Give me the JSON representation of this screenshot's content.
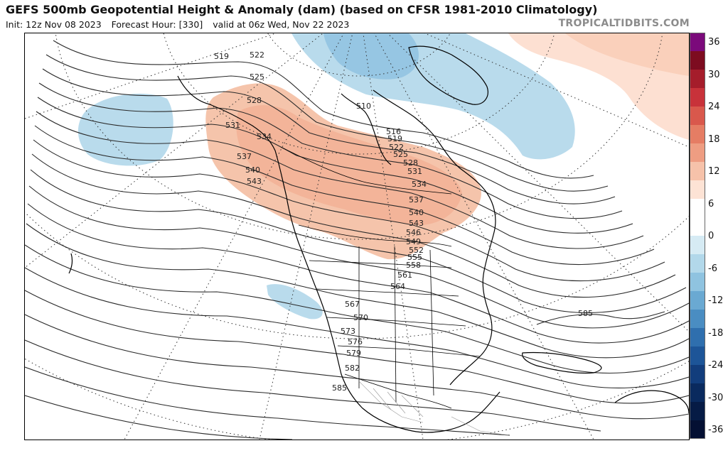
{
  "title": "GEFS 500mb Geopotential Height & Anomaly (dam) (based on CFSR 1981-2010 Climatology)",
  "subtitle": {
    "init": "Init: 12z Nov 08 2023",
    "forecast_hour": "Forecast Hour: [330]",
    "valid": "valid at 06z Wed, Nov 22 2023"
  },
  "brand": "TROPICALTIDBITS.COM",
  "colorbar": {
    "labels": [
      "36",
      "30",
      "24",
      "18",
      "12",
      "6",
      "0",
      "-6",
      "-12",
      "-18",
      "-24",
      "-30",
      "-36"
    ],
    "colors": [
      "#7b0a7b",
      "#7d0c20",
      "#a51d2b",
      "#c8323a",
      "#d9584c",
      "#e57d64",
      "#ee9d82",
      "#f6c2aa",
      "#fde3d5",
      "#ffffff",
      "#ffffff",
      "#d6ebf4",
      "#b2d8ea",
      "#8fc3e0",
      "#6aa9d2",
      "#4a8dc2",
      "#2f6fae",
      "#1d5598",
      "#123d7c",
      "#0a2a5e",
      "#061b45",
      "#041033"
    ]
  },
  "contours": [
    "519",
    "522",
    "525",
    "528",
    "531",
    "534",
    "537",
    "540",
    "543",
    "546",
    "549",
    "552",
    "555",
    "558",
    "561",
    "564",
    "567",
    "570",
    "573",
    "576",
    "579",
    "582",
    "585"
  ],
  "map_labels": {
    "l519": "519",
    "l522": "522",
    "l525": "525",
    "l528": "528",
    "l531": "531",
    "l534": "534",
    "l537": "537",
    "l540": "540",
    "l543": "543",
    "l516": "516",
    "l519b": "519",
    "l522b": "522",
    "l525b": "525",
    "l528b": "528",
    "l531b": "531",
    "l534b": "534",
    "l537b": "537",
    "l540b": "540",
    "l543b": "543",
    "l546": "546",
    "l549": "549",
    "l552": "552",
    "l555": "555",
    "l558": "558",
    "l561": "561",
    "l564": "564",
    "l567": "567",
    "l570": "570",
    "l573": "573",
    "l576": "576",
    "l579": "579",
    "l582": "582",
    "l585": "585",
    "l585b": "585",
    "l510": "510",
    "l516b": "516"
  }
}
